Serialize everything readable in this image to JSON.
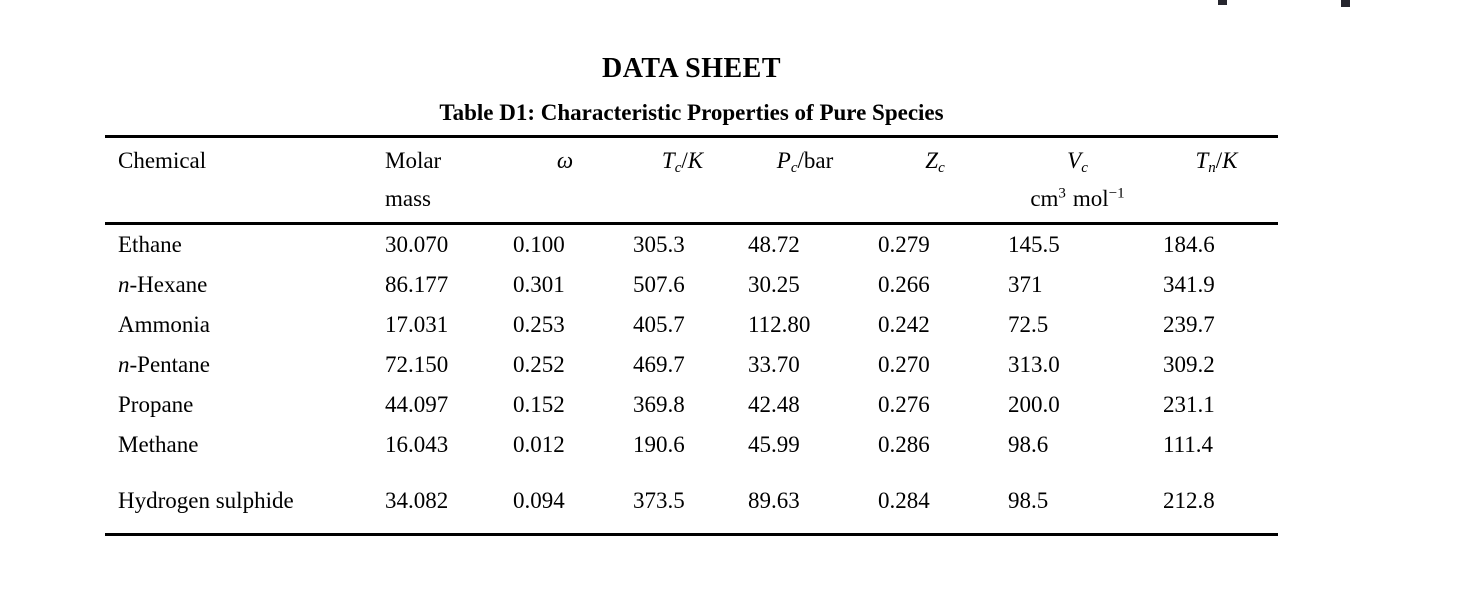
{
  "page": {
    "title": "DATA SHEET",
    "table_caption": "Table D1: Characteristic Properties of Pure Species"
  },
  "table": {
    "headers": {
      "chemical": "Chemical",
      "molar_line1": "Molar",
      "molar_line2": "mass",
      "omega": "ω",
      "tc": {
        "sym": "T",
        "sub": "c",
        "slash": "/",
        "unit": "K"
      },
      "pc": {
        "sym": "P",
        "sub": "c",
        "slash": "/",
        "unit": "bar"
      },
      "zc": {
        "sym": "Z",
        "sub": "c"
      },
      "vc": {
        "sym": "V",
        "sub": "c",
        "unit_base": "cm",
        "unit_exp": "3",
        "unit_mol": "mol",
        "unit_mol_exp": "−1"
      },
      "tn": {
        "sym": "T",
        "sub": "n",
        "slash": "/",
        "unit": "K"
      }
    },
    "rows": [
      {
        "prefix": "",
        "name": "Ethane",
        "values": [
          "30.070",
          "0.100",
          "305.3",
          "48.72",
          "0.279",
          "145.5",
          "184.6"
        ]
      },
      {
        "prefix": "n",
        "name": "-Hexane",
        "values": [
          "86.177",
          "0.301",
          "507.6",
          "30.25",
          "0.266",
          "371",
          "341.9"
        ]
      },
      {
        "prefix": "",
        "name": "Ammonia",
        "values": [
          "17.031",
          "0.253",
          "405.7",
          "112.80",
          "0.242",
          "72.5",
          "239.7"
        ]
      },
      {
        "prefix": "n",
        "name": "-Pentane",
        "values": [
          "72.150",
          "0.252",
          "469.7",
          "33.70",
          "0.270",
          "313.0",
          "309.2"
        ]
      },
      {
        "prefix": "",
        "name": "Propane",
        "values": [
          "44.097",
          "0.152",
          "369.8",
          "42.48",
          "0.276",
          "200.0",
          "231.1"
        ]
      },
      {
        "prefix": "",
        "name": "Methane",
        "values": [
          "16.043",
          "0.012",
          "190.6",
          "45.99",
          "0.286",
          "98.6",
          "111.4"
        ]
      },
      {
        "prefix": "",
        "name": "Hydrogen sulphide",
        "values": [
          "34.082",
          "0.094",
          "373.5",
          "89.63",
          "0.284",
          "98.5",
          "212.8"
        ]
      }
    ]
  }
}
